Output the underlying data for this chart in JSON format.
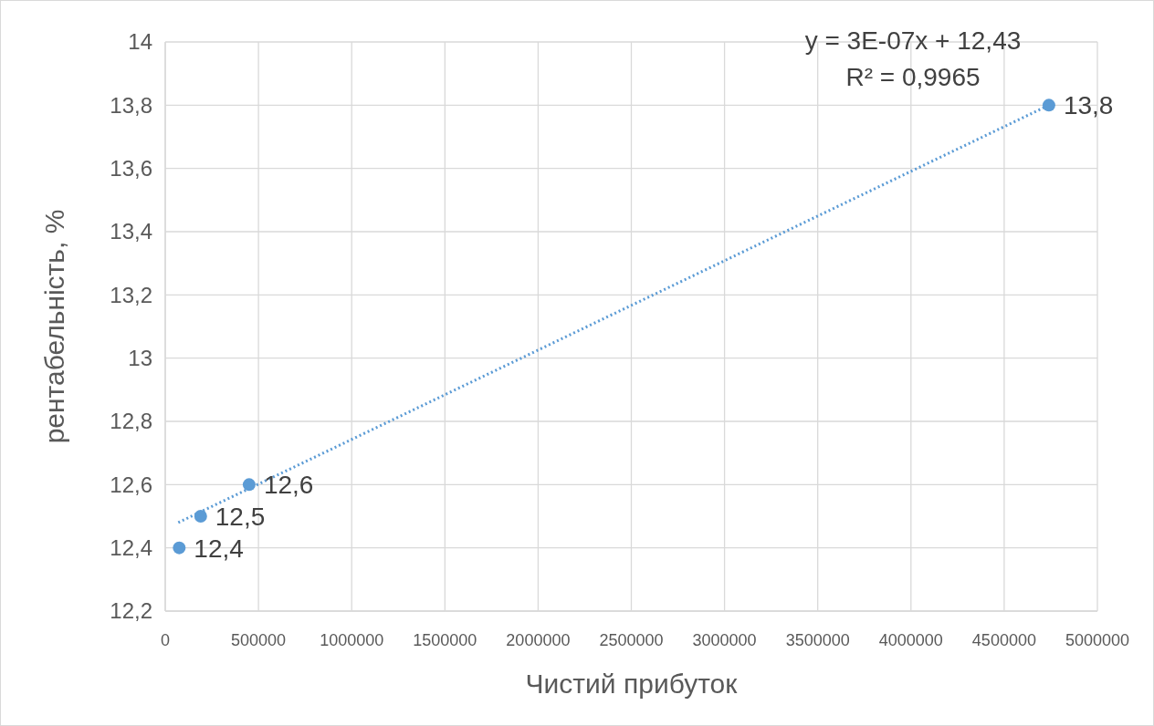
{
  "chart_data": {
    "type": "scatter",
    "xlabel": "Чистий прибуток",
    "ylabel": "рентабельність, %",
    "annotations": [
      "y = 3E-07x + 12,43",
      "R² = 0,9965"
    ],
    "series": [
      {
        "color": "#5b9bd5",
        "x": [
          75000,
          190000,
          450000,
          4740000
        ],
        "values": [
          12.4,
          12.5,
          12.6,
          13.8
        ],
        "value_labels": [
          "12,4",
          "12,5",
          "12,6",
          "13,8"
        ],
        "marker": "circle"
      },
      {
        "type": "line",
        "color": "#5b9bd5",
        "x": [
          70000,
          4740000
        ],
        "values": [
          12.48,
          13.8
        ],
        "line_style": "dotted"
      }
    ],
    "xlim": [
      0,
      5000000
    ],
    "xticks": [
      0,
      500000,
      1000000,
      1500000,
      2000000,
      2500000,
      3000000,
      3500000,
      4000000,
      4500000,
      5000000
    ],
    "ylim": [
      12.2,
      14
    ],
    "yticks": [
      {
        "value": 12.2,
        "label": "12,2"
      },
      {
        "value": 12.4,
        "label": "12,4"
      },
      {
        "value": 12.6,
        "label": "12,6"
      },
      {
        "value": 12.8,
        "label": "12,8"
      },
      {
        "value": 13,
        "label": "13"
      },
      {
        "value": 13.2,
        "label": "13,2"
      },
      {
        "value": 13.4,
        "label": "13,4"
      },
      {
        "value": 13.6,
        "label": "13,6"
      },
      {
        "value": 13.8,
        "label": "13,8"
      },
      {
        "value": 14,
        "label": "14"
      }
    ],
    "grid": true
  }
}
